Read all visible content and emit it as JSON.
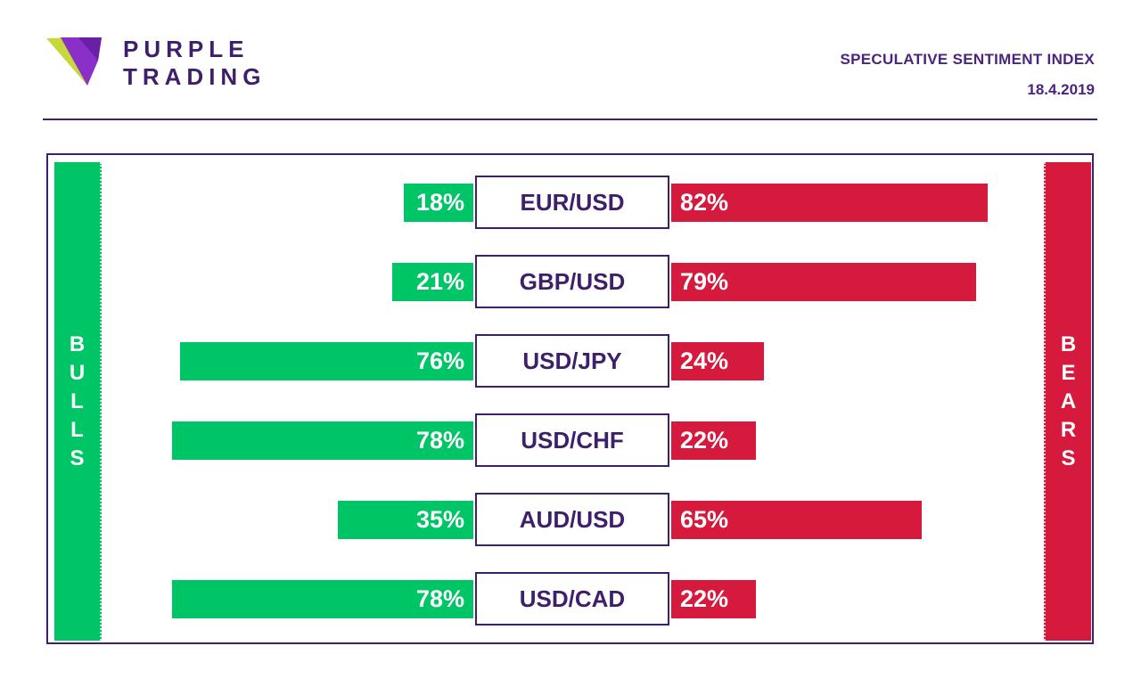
{
  "brand": {
    "line1": "PURPLE",
    "line2": "TRADING",
    "colors": {
      "purple": "#3d1f6b",
      "lime": "#c7d83a",
      "violet": "#8b2fc9"
    }
  },
  "header": {
    "title": "SPECULATIVE SENTIMENT INDEX",
    "date": "18.4.2019"
  },
  "labels": {
    "bulls": "BULLS",
    "bears": "BEARS"
  },
  "colors": {
    "bulls": "#00c566",
    "bears": "#d61a3e",
    "frame": "#3d1f6b"
  },
  "chart_data": {
    "type": "bar",
    "orientation": "horizontal-diverging",
    "categories": [
      "EUR/USD",
      "GBP/USD",
      "USD/JPY",
      "USD/CHF",
      "AUD/USD",
      "USD/CAD"
    ],
    "series": [
      {
        "name": "BULLS",
        "values": [
          18,
          21,
          76,
          78,
          35,
          78
        ],
        "labels": [
          "18%",
          "21%",
          "76%",
          "78%",
          "35%",
          "78%"
        ]
      },
      {
        "name": "BEARS",
        "values": [
          82,
          79,
          24,
          22,
          65,
          22
        ],
        "labels": [
          "82%",
          "79%",
          "24%",
          "22%",
          "65%",
          "22%"
        ]
      }
    ],
    "unit": "%"
  }
}
